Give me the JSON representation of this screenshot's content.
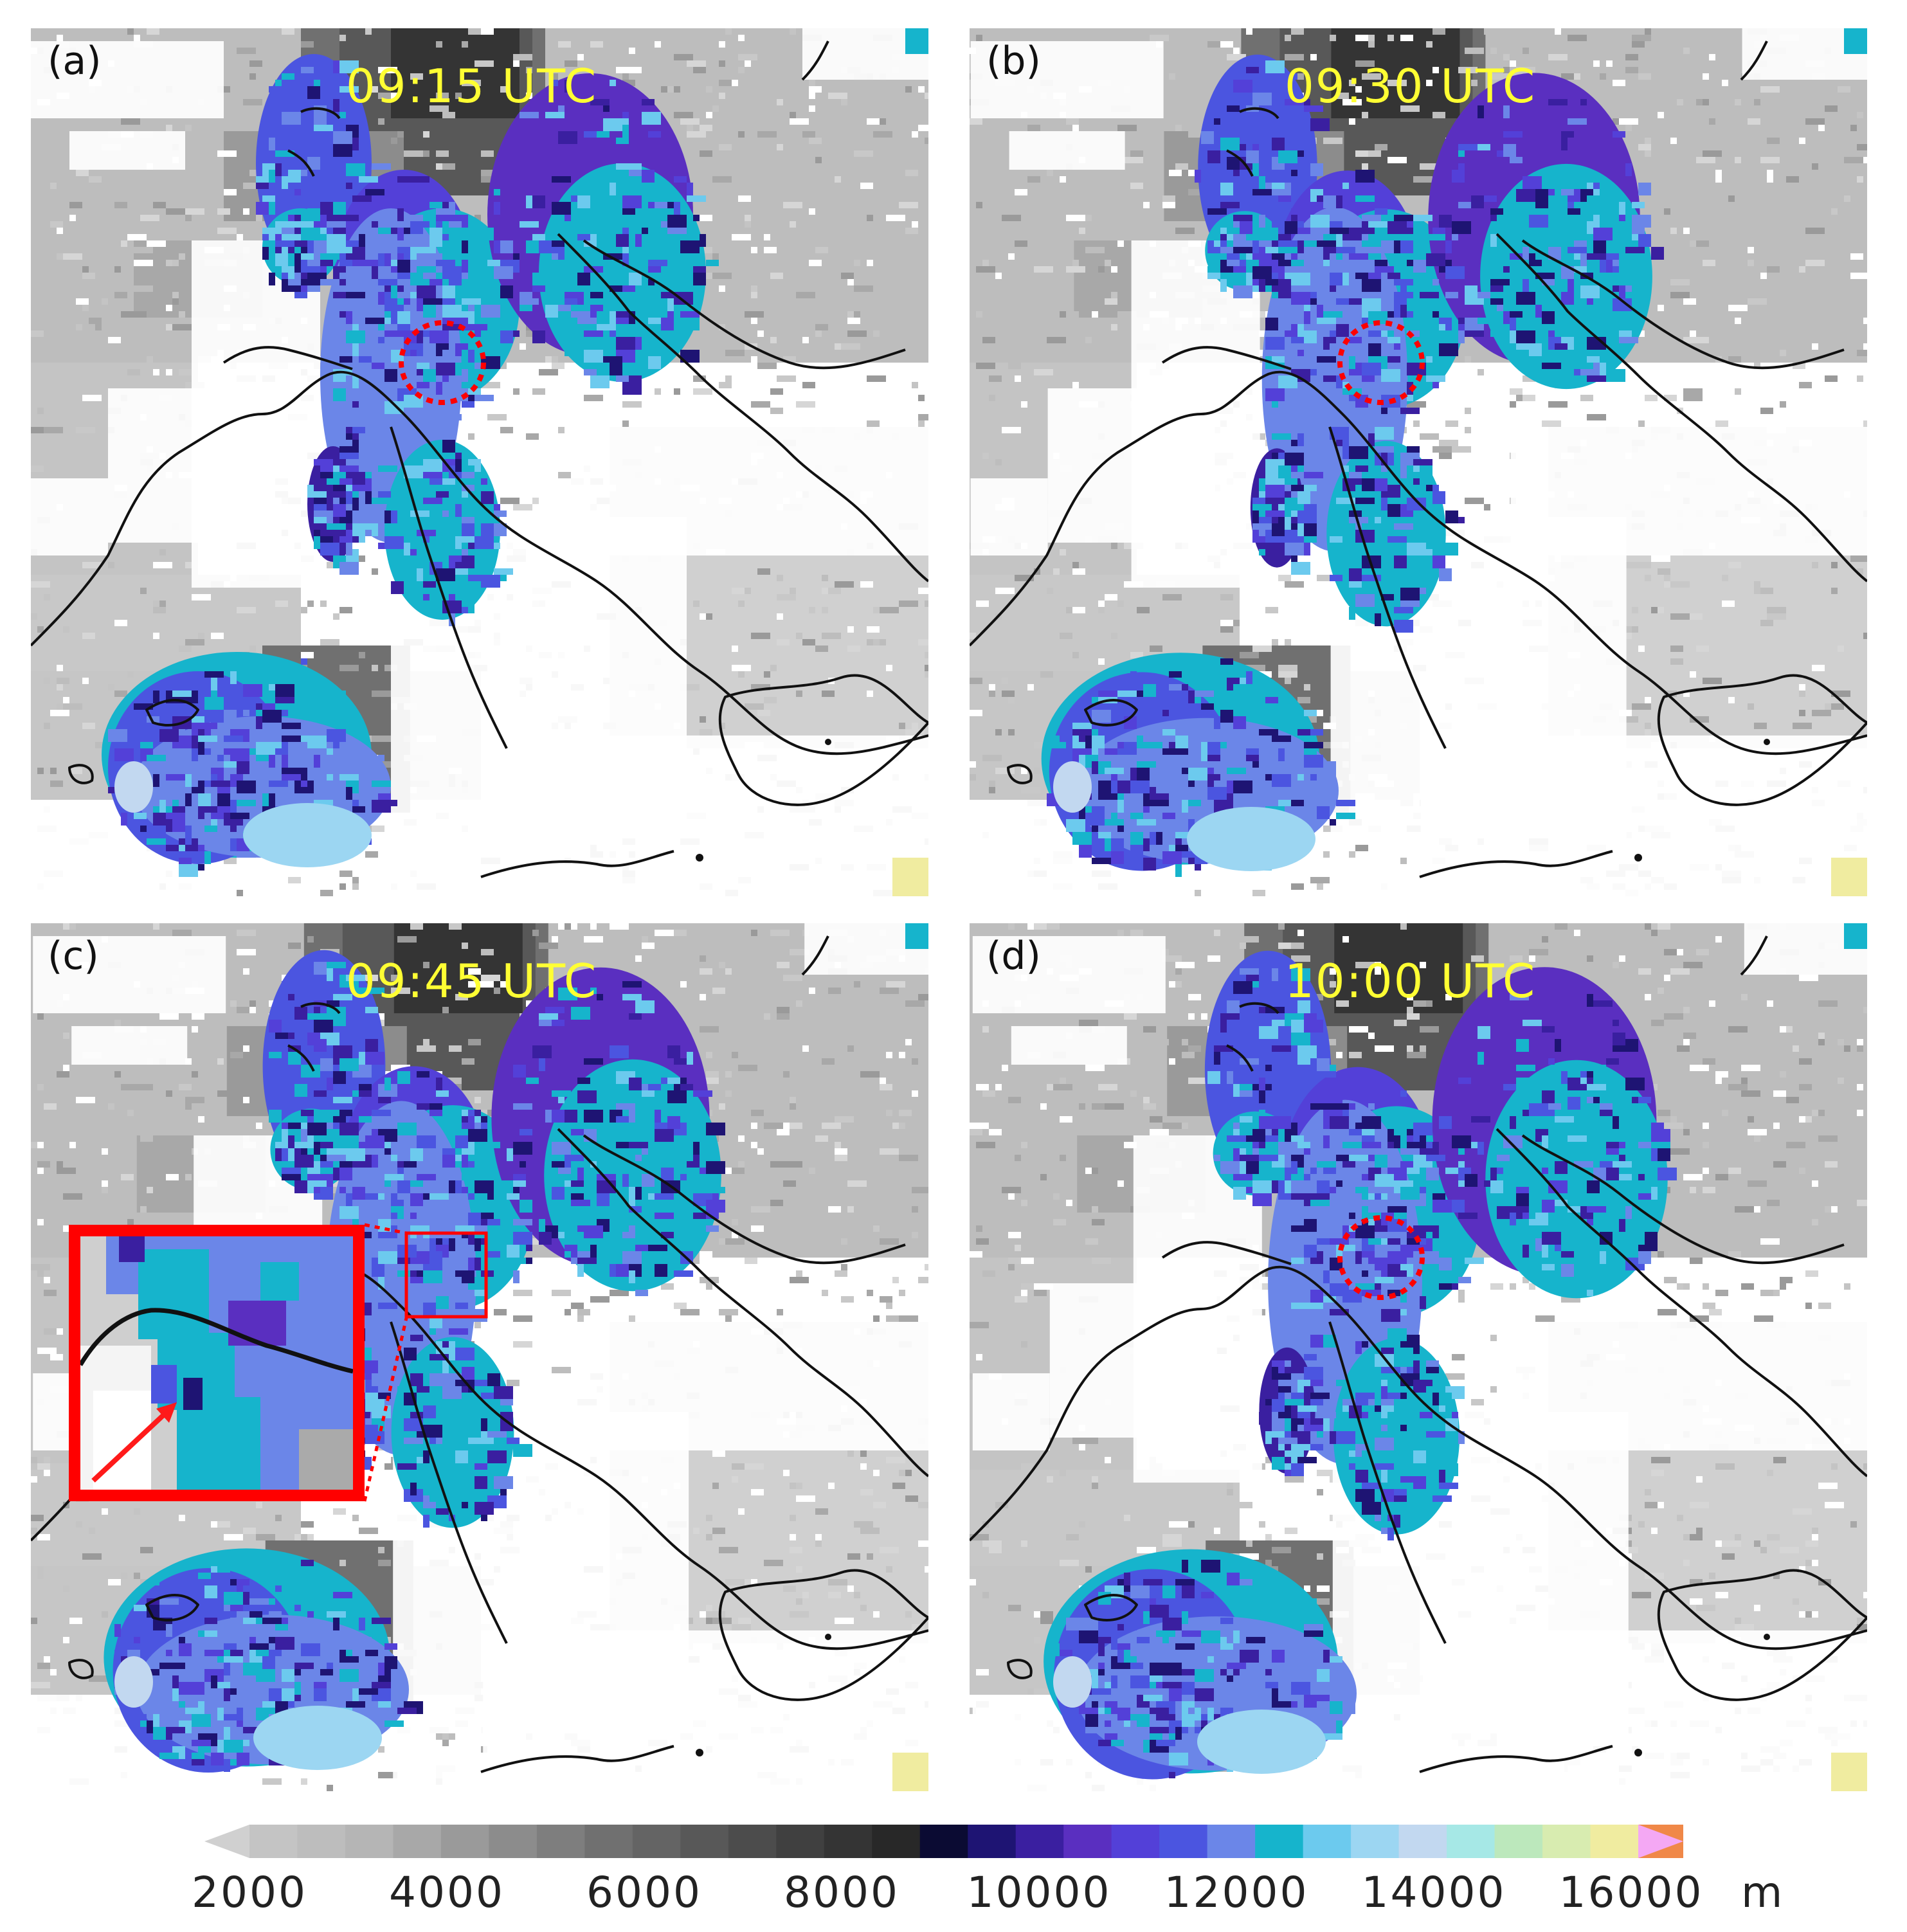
{
  "figure": {
    "panels": [
      {
        "label": "(a)",
        "time": "09:15 UTC",
        "marker": "circle"
      },
      {
        "label": "(b)",
        "time": "09:30 UTC",
        "marker": "circle"
      },
      {
        "label": "(c)",
        "time": "09:45 UTC",
        "marker": "box-with-inset"
      },
      {
        "label": "(d)",
        "time": "10:00 UTC",
        "marker": "circle"
      }
    ],
    "time_label_color": "#ffff33",
    "marker_color": "#ff0000"
  },
  "colorbar": {
    "unit": "m",
    "tick_labels": [
      "2000",
      "4000",
      "6000",
      "8000",
      "10000",
      "12000",
      "14000",
      "16000"
    ],
    "tick_values": [
      2000,
      4000,
      6000,
      8000,
      10000,
      12000,
      14000,
      16000
    ],
    "bin_width_m": 500,
    "extend": "both",
    "colors": [
      "#c4c4c4",
      "#bdbdbd",
      "#b5b5b5",
      "#a8a8a8",
      "#9a9a9a",
      "#8c8c8c",
      "#7e7e7e",
      "#707070",
      "#646464",
      "#585858",
      "#4c4c4c",
      "#404040",
      "#343434",
      "#282828",
      "#0b0b33",
      "#1e1473",
      "#3a1fa0",
      "#5a2fc0",
      "#5340d8",
      "#4b55e0",
      "#6b86e8",
      "#16b4cc",
      "#6ccaee",
      "#9cd6f2",
      "#c2d8f0",
      "#a6e8e6",
      "#bce8bc",
      "#d8ecb0",
      "#f0eca0",
      "#f08848",
      "#f4a8f4"
    ],
    "under_color": "#d0d0d0",
    "over_color": "#f4a8f4"
  }
}
